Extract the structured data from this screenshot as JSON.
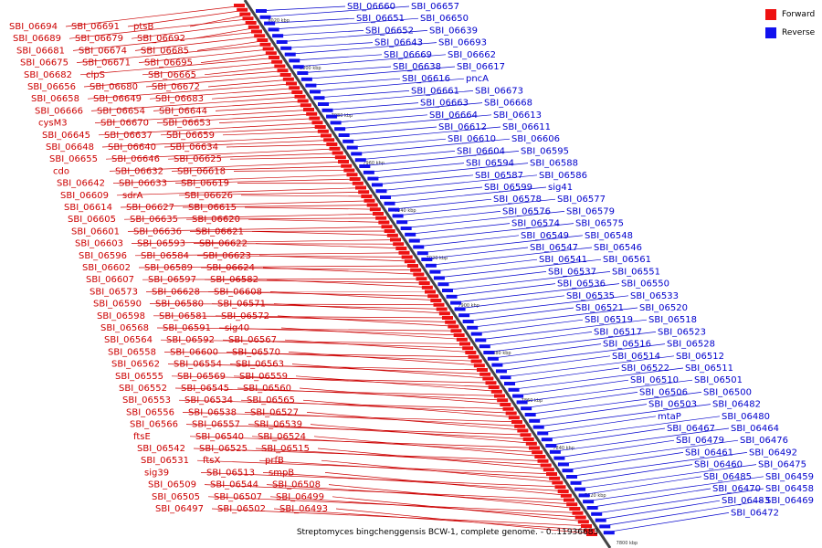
{
  "legend": {
    "forward_label": "Forward",
    "reverse_label": "Reverse",
    "forward_color": "#ee1111",
    "reverse_color": "#1111ee"
  },
  "caption": "Streptomyces bingchenggensis BCW-1, complete genome. - 0..11936683",
  "scale_labels": [
    "8020 kbp",
    "8000 kbp",
    "7980 kbp",
    "7960 kbp",
    "7940 kbp",
    "7920 kbp",
    "7900 kbp",
    "7880 kbp",
    "7860 kbp",
    "7840 kbp",
    "7820 kbp",
    "7800 kbp"
  ],
  "forward_genes": [
    "SBI_06694",
    "SBI_06691",
    "ptsB",
    "SBI_06689",
    "SBI_06679",
    "SBI_06692",
    "SBI_06681",
    "SBI_06674",
    "SBI_06685",
    "SBI_06675",
    "SBI_06671",
    "SBI_06695",
    "SBI_06682",
    "clpS",
    "SBI_06665",
    "SBI_06656",
    "SBI_06680",
    "SBI_06672",
    "SBI_06658",
    "SBI_06649",
    "SBI_06683",
    "SBI_06666",
    "SBI_06654",
    "SBI_06644",
    "cysM3",
    "SBI_06670",
    "SBI_06653",
    "SBI_06645",
    "SBI_06637",
    "SBI_06659",
    "SBI_06648",
    "SBI_06640",
    "SBI_06634",
    "SBI_06655",
    "SBI_06646",
    "SBI_06625",
    "cdo",
    "SBI_06632",
    "SBI_06618",
    "SBI_06642",
    "SBI_06633",
    "SBI_06619",
    "SBI_06609",
    "sdrA",
    "SBI_06626",
    "SBI_06614",
    "SBI_06627",
    "SBI_06615",
    "SBI_06605",
    "SBI_06635",
    "SBI_06620",
    "SBI_06601",
    "SBI_06636",
    "SBI_06621",
    "SBI_06603",
    "SBI_06593",
    "SBI_06622",
    "SBI_06596",
    "SBI_06584",
    "SBI_06623",
    "SBI_06602",
    "SBI_06589",
    "SBI_06624",
    "SBI_06607",
    "SBI_06597",
    "SBI_06582",
    "SBI_06573",
    "SBI_06628",
    "SBI_06608",
    "SBI_06590",
    "SBI_06580",
    "SBI_06571",
    "SBI_06598",
    "SBI_06581",
    "SBI_06572",
    "SBI_06568",
    "SBI_06591",
    "sig40",
    "SBI_06564",
    "SBI_06592",
    "SBI_06567",
    "SBI_06558",
    "SBI_06600",
    "SBI_06570",
    "SBI_06562",
    "SBI_06554",
    "SBI_06563",
    "SBI_06555",
    "SBI_06569",
    "SBI_06559",
    "SBI_06552",
    "SBI_06545",
    "SBI_06560",
    "SBI_06553",
    "SBI_06534",
    "SBI_06565",
    "SBI_06556",
    "SBI_06538",
    "SBI_06527",
    "SBI_06566",
    "SBI_06557",
    "SBI_06539",
    "ftsE",
    "SBI_06540",
    "SBI_06524",
    "SBI_06542",
    "SBI_06525",
    "SBI_06515",
    "SBI_06531",
    "ftsX",
    "prfB",
    "sig39",
    "SBI_06513",
    "smpB",
    "SBI_06509",
    "SBI_06544",
    "SBI_06508",
    "SBI_06505",
    "SBI_06507",
    "SBI_06499",
    "SBI_06497",
    "SBI_06502",
    "SBI_06493"
  ],
  "reverse_genes": [
    "SBI_06660",
    "SBI_06657",
    "SBI_06651",
    "SBI_06650",
    "SBI_06652",
    "SBI_06639",
    "SBI_06643",
    "SBI_06693",
    "SBI_06669",
    "SBI_06662",
    "SBI_06638",
    "SBI_06617",
    "SBI_06616",
    "pncA",
    "SBI_06661",
    "SBI_06673",
    "SBI_06663",
    "SBI_06668",
    "SBI_06664",
    "SBI_06613",
    "SBI_06612",
    "SBI_06611",
    "SBI_06610",
    "SBI_06606",
    "SBI_06604",
    "SBI_06595",
    "SBI_06594",
    "SBI_06588",
    "SBI_06587",
    "SBI_06586",
    "SBI_06599",
    "sig41",
    "SBI_06578",
    "SBI_06577",
    "SBI_06576",
    "SBI_06579",
    "SBI_06574",
    "SBI_06575",
    "SBI_06549",
    "SBI_06548",
    "SBI_06547",
    "SBI_06546",
    "SBI_06541",
    "SBI_06561",
    "SBI_06537",
    "SBI_06551",
    "SBI_06536",
    "SBI_06550",
    "SBI_06535",
    "SBI_06533",
    "SBI_06521",
    "SBI_06520",
    "SBI_06519",
    "SBI_06518",
    "SBI_06517",
    "SBI_06523",
    "SBI_06516",
    "SBI_06528",
    "SBI_06514",
    "SBI_06512",
    "SBI_06522",
    "SBI_06511",
    "SBI_06510",
    "SBI_06501",
    "SBI_06506",
    "SBI_06500",
    "SBI_06503",
    "SBI_06482",
    "mtaP",
    "SBI_06480",
    "SBI_06467",
    "SBI_06464",
    "SBI_06479",
    "SBI_06476",
    "SBI_06461",
    "SBI_06492",
    "SBI_06460",
    "SBI_06475",
    "SBI_06485",
    "SBI_06459",
    "SBI_06470",
    "SBI_06458",
    "SBI_06483",
    "SBI_06469",
    "SBI_06472"
  ]
}
